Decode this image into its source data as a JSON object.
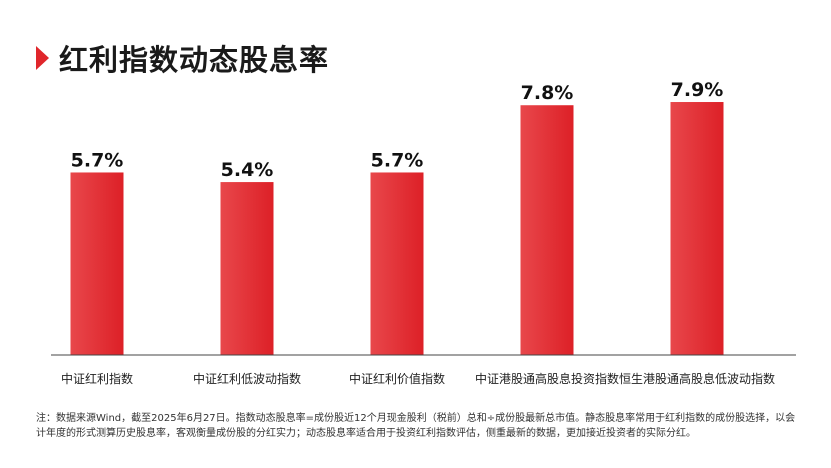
{
  "title": "红利指数动态股息率",
  "colors": {
    "bar_top": "#e8474b",
    "bar_bottom": "#dd2027",
    "marker": "#e0262b",
    "axis": "#444444"
  },
  "chart_data": {
    "type": "bar",
    "categories": [
      "中证红利指数",
      "中证红利低波动指数",
      "中证红利价值指数",
      "中证港股通高股息投资指数",
      "恒生港股通高股息低波动指数"
    ],
    "values": [
      5.7,
      5.4,
      5.7,
      7.8,
      7.9
    ],
    "value_labels": [
      "5.7%",
      "5.4%",
      "5.7%",
      "7.8%",
      "7.9%"
    ],
    "unit": "%",
    "ylim": [
      0,
      8.9
    ],
    "grid": false,
    "legend": "none"
  },
  "note": "注：数据来源Wind，截至2025年6月27日。指数动态股息率=成份股近12个月现金股利（税前）总和÷成份股最新总市值。静态股息率常用于红利指数的成份股选择，以会计年度的形式测算历史股息率，客观衡量成份股的分红实力；动态股息率适合用于投资红利指数评估，侧重最新的数据，更加接近投资者的实际分红。"
}
